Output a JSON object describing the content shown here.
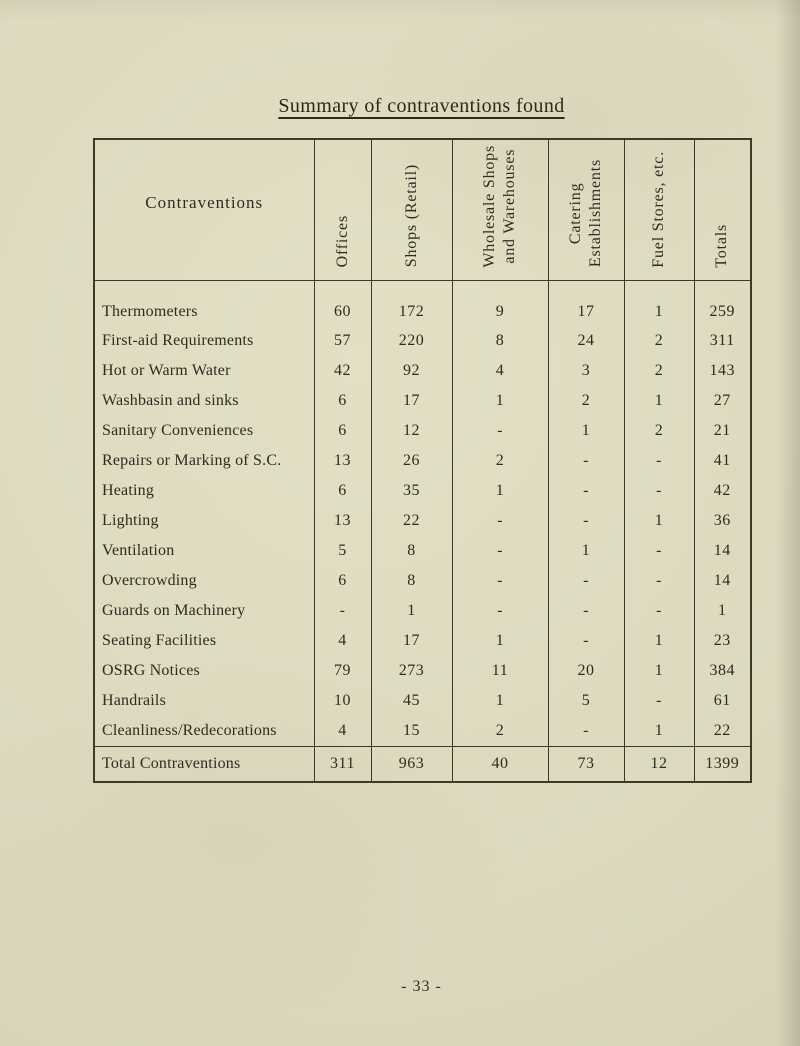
{
  "page": {
    "title": "Summary of contraventions found",
    "page_number": "- 33 -"
  },
  "table": {
    "columns": [
      {
        "id": "contraventions",
        "label": "Contraventions"
      },
      {
        "id": "offices",
        "label": "Offices"
      },
      {
        "id": "shops-retail",
        "label": "Shops (Retail)"
      },
      {
        "id": "wholesale-shops-warehouses",
        "label": "Wholesale Shops\nand Warehouses"
      },
      {
        "id": "catering-establishments",
        "label": "Catering\nEstablishments"
      },
      {
        "id": "fuel-stores",
        "label": "Fuel Stores, etc."
      },
      {
        "id": "totals",
        "label": "Totals"
      }
    ],
    "rows": [
      {
        "label": "Thermometers",
        "values": [
          "60",
          "172",
          "9",
          "17",
          "1",
          "259"
        ]
      },
      {
        "label": "First-aid Requirements",
        "values": [
          "57",
          "220",
          "8",
          "24",
          "2",
          "311"
        ]
      },
      {
        "label": "Hot or Warm Water",
        "values": [
          "42",
          "92",
          "4",
          "3",
          "2",
          "143"
        ]
      },
      {
        "label": "Washbasin and sinks",
        "values": [
          "6",
          "17",
          "1",
          "2",
          "1",
          "27"
        ]
      },
      {
        "label": "Sanitary Conveniences",
        "values": [
          "6",
          "12",
          "-",
          "1",
          "2",
          "21"
        ]
      },
      {
        "label": "Repairs or Marking of S.C.",
        "values": [
          "13",
          "26",
          "2",
          "-",
          "-",
          "41"
        ]
      },
      {
        "label": "Heating",
        "values": [
          "6",
          "35",
          "1",
          "-",
          "-",
          "42"
        ]
      },
      {
        "label": "Lighting",
        "values": [
          "13",
          "22",
          "-",
          "-",
          "1",
          "36"
        ]
      },
      {
        "label": "Ventilation",
        "values": [
          "5",
          "8",
          "-",
          "1",
          "-",
          "14"
        ]
      },
      {
        "label": "Overcrowding",
        "values": [
          "6",
          "8",
          "-",
          "-",
          "-",
          "14"
        ]
      },
      {
        "label": "Guards on Machinery",
        "values": [
          "-",
          "1",
          "-",
          "-",
          "-",
          "1"
        ]
      },
      {
        "label": "Seating Facilities",
        "values": [
          "4",
          "17",
          "1",
          "-",
          "1",
          "23"
        ]
      },
      {
        "label": "OSRG Notices",
        "values": [
          "79",
          "273",
          "11",
          "20",
          "1",
          "384"
        ]
      },
      {
        "label": "Handrails",
        "values": [
          "10",
          "45",
          "1",
          "5",
          "-",
          "61"
        ]
      },
      {
        "label": "Cleanliness/Redecorations",
        "values": [
          "4",
          "15",
          "2",
          "-",
          "1",
          "22"
        ]
      }
    ],
    "total_row": {
      "label": "Total Contraventions",
      "values": [
        "311",
        "963",
        "40",
        "73",
        "12",
        "1399"
      ]
    }
  }
}
